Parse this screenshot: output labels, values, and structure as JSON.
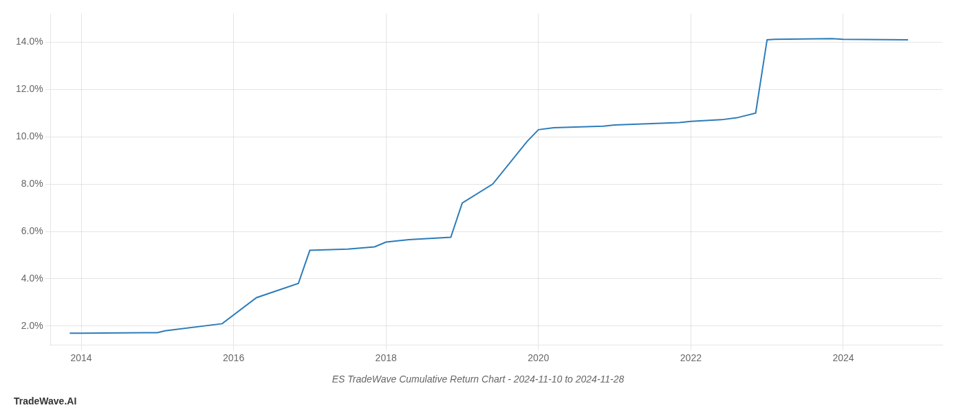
{
  "chart_data": {
    "type": "line",
    "title": "ES TradeWave Cumulative Return Chart - 2024-11-10 to 2024-11-28",
    "annotations": [
      "TradeWave.AI"
    ],
    "x": [
      2013.85,
      2014.0,
      2014.83,
      2015.0,
      2015.1,
      2015.85,
      2016.3,
      2016.85,
      2017.0,
      2017.5,
      2017.85,
      2018.0,
      2018.3,
      2018.85,
      2019.0,
      2019.4,
      2019.85,
      2020.0,
      2020.2,
      2020.85,
      2021.0,
      2021.85,
      2022.0,
      2022.4,
      2022.6,
      2022.85,
      2023.0,
      2023.1,
      2023.85,
      2024.0,
      2024.85
    ],
    "values": [
      1.7,
      1.7,
      1.72,
      1.72,
      1.8,
      2.1,
      3.2,
      3.8,
      5.2,
      5.25,
      5.35,
      5.55,
      5.65,
      5.75,
      7.2,
      8.0,
      9.8,
      10.3,
      10.38,
      10.45,
      10.5,
      10.6,
      10.65,
      10.72,
      10.8,
      11.0,
      14.1,
      14.12,
      14.15,
      14.12,
      14.1
    ],
    "color": "#2b7bb9",
    "xlim": [
      2013.6,
      2025.3
    ],
    "xticks": [
      2014,
      2016,
      2018,
      2020,
      2022,
      2024
    ],
    "ylim": [
      1.2,
      15.2
    ],
    "yticks": [
      {
        "value": 2.0,
        "label": "2.0%"
      },
      {
        "value": 4.0,
        "label": "4.0%"
      },
      {
        "value": 6.0,
        "label": "6.0%"
      },
      {
        "value": 8.0,
        "label": "8.0%"
      },
      {
        "value": 10.0,
        "label": "10.0%"
      },
      {
        "value": 12.0,
        "label": "12.0%"
      },
      {
        "value": 14.0,
        "label": "14.0%"
      }
    ],
    "grid": true
  }
}
